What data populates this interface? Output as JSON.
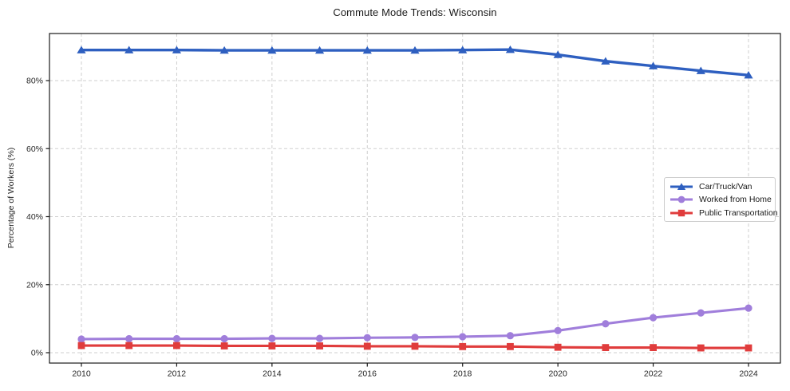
{
  "page": {
    "background": "#ffffff",
    "axis_color": "#1a1a1a",
    "grid_color": "#cfcfcf"
  },
  "chart_data": {
    "type": "line",
    "title": "Commute Mode Trends: Wisconsin",
    "xlabel": "",
    "ylabel": "Percentage of Workers (%)",
    "x": [
      2010,
      2011,
      2012,
      2013,
      2014,
      2015,
      2016,
      2017,
      2018,
      2019,
      2020,
      2021,
      2022,
      2023,
      2024
    ],
    "x_ticks": [
      {
        "value": 2010,
        "label": "2010"
      },
      {
        "value": 2012,
        "label": "2012"
      },
      {
        "value": 2014,
        "label": "2014"
      },
      {
        "value": 2016,
        "label": "2016"
      },
      {
        "value": 2018,
        "label": "2018"
      },
      {
        "value": 2020,
        "label": "2020"
      },
      {
        "value": 2022,
        "label": "2022"
      },
      {
        "value": 2024,
        "label": "2024"
      }
    ],
    "y_ticks": [
      {
        "value": 0,
        "label": "0%"
      },
      {
        "value": 20,
        "label": "20%"
      },
      {
        "value": 40,
        "label": "40%"
      },
      {
        "value": 60,
        "label": "60%"
      },
      {
        "value": 80,
        "label": "80%"
      }
    ],
    "ylim": [
      -3,
      93.8
    ],
    "grid": true,
    "grid_style": "dashed",
    "legend_position": "center-right",
    "series": [
      {
        "name": "Car/Truck/Van",
        "color": "#2e5fc0",
        "marker": "triangle",
        "values": [
          89.0,
          89.0,
          89.0,
          88.9,
          88.9,
          88.9,
          88.9,
          88.9,
          89.0,
          89.1,
          87.6,
          85.7,
          84.3,
          82.9,
          81.6
        ]
      },
      {
        "name": "Worked from Home",
        "color": "#a07edb",
        "marker": "circle",
        "values": [
          4.0,
          4.1,
          4.1,
          4.1,
          4.2,
          4.2,
          4.4,
          4.5,
          4.7,
          5.0,
          6.5,
          8.5,
          10.3,
          11.7,
          13.1
        ]
      },
      {
        "name": "Public Transportation",
        "color": "#e03c3c",
        "marker": "square",
        "values": [
          2.1,
          2.1,
          2.1,
          2.0,
          2.0,
          2.0,
          1.9,
          1.9,
          1.8,
          1.8,
          1.6,
          1.5,
          1.5,
          1.4,
          1.4
        ]
      }
    ]
  }
}
